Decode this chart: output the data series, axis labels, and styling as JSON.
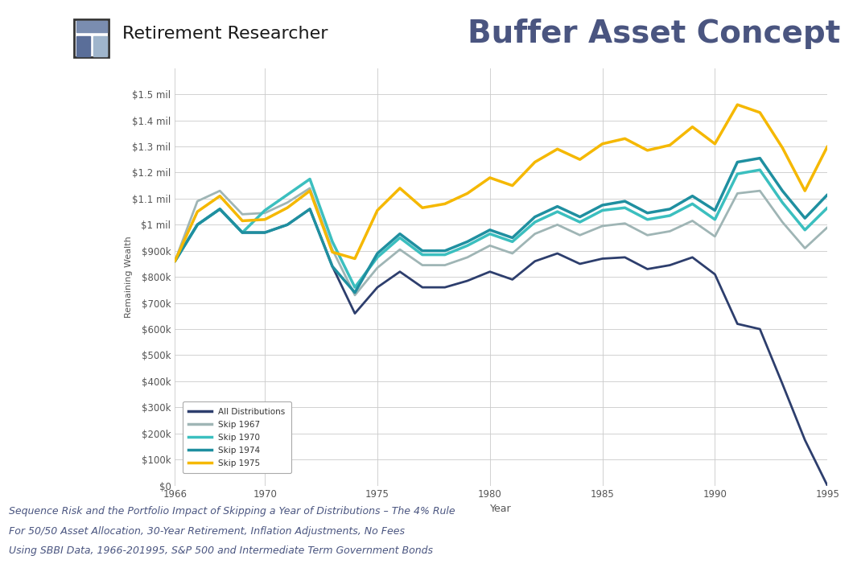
{
  "title": "Buffer Asset Concept",
  "subtitle_line1": "Sequence Risk and the Portfolio Impact of Skipping a Year of Distributions – The 4% Rule",
  "subtitle_line2": "For 50/50 Asset Allocation, 30-Year Retirement, Inflation Adjustments, No Fees",
  "subtitle_line3": "Using SBBI Data, 1966-201995, S&P 500 and Intermediate Term Government Bonds",
  "xlabel": "Year",
  "ylabel": "Remaining Wealth",
  "header_org": "Retirement Researcher",
  "years": [
    1966,
    1967,
    1968,
    1969,
    1970,
    1971,
    1972,
    1973,
    1974,
    1975,
    1976,
    1977,
    1978,
    1979,
    1980,
    1981,
    1982,
    1983,
    1984,
    1985,
    1986,
    1987,
    1988,
    1989,
    1990,
    1991,
    1992,
    1993,
    1994,
    1995
  ],
  "all_dist": [
    860000,
    1000000,
    1060000,
    970000,
    970000,
    1000000,
    1060000,
    840000,
    660000,
    760000,
    820000,
    760000,
    760000,
    785000,
    820000,
    790000,
    860000,
    890000,
    850000,
    870000,
    875000,
    830000,
    845000,
    875000,
    810000,
    620000,
    600000,
    390000,
    175000,
    0
  ],
  "skip_1967": [
    860000,
    1090000,
    1130000,
    1040000,
    1045000,
    1085000,
    1140000,
    905000,
    730000,
    835000,
    905000,
    845000,
    845000,
    875000,
    920000,
    890000,
    965000,
    1000000,
    960000,
    995000,
    1005000,
    960000,
    975000,
    1015000,
    955000,
    1120000,
    1130000,
    1010000,
    910000,
    990000
  ],
  "skip_1970": [
    860000,
    1000000,
    1060000,
    970000,
    1055000,
    1115000,
    1175000,
    935000,
    760000,
    875000,
    950000,
    885000,
    885000,
    920000,
    965000,
    935000,
    1010000,
    1050000,
    1010000,
    1055000,
    1065000,
    1020000,
    1035000,
    1080000,
    1020000,
    1195000,
    1210000,
    1085000,
    980000,
    1065000
  ],
  "skip_1974": [
    860000,
    1000000,
    1060000,
    970000,
    970000,
    1000000,
    1060000,
    840000,
    740000,
    890000,
    965000,
    900000,
    900000,
    935000,
    980000,
    950000,
    1030000,
    1070000,
    1030000,
    1075000,
    1090000,
    1045000,
    1060000,
    1110000,
    1055000,
    1240000,
    1255000,
    1130000,
    1025000,
    1115000
  ],
  "skip_1975": [
    860000,
    1050000,
    1110000,
    1015000,
    1020000,
    1065000,
    1130000,
    895000,
    870000,
    1055000,
    1140000,
    1065000,
    1080000,
    1120000,
    1180000,
    1150000,
    1240000,
    1290000,
    1250000,
    1310000,
    1330000,
    1285000,
    1305000,
    1375000,
    1310000,
    1460000,
    1430000,
    1295000,
    1130000,
    1300000
  ],
  "colors": {
    "all_dist": "#2d3e6d",
    "skip_1967": "#9fb5b5",
    "skip_1970": "#3bbfbf",
    "skip_1974": "#1f8fa0",
    "skip_1975": "#f5b800"
  },
  "linewidths": {
    "all_dist": 2.0,
    "skip_1967": 2.0,
    "skip_1970": 2.5,
    "skip_1974": 2.5,
    "skip_1975": 2.5
  },
  "ylim": [
    0,
    1600000
  ],
  "yticks": [
    0,
    100000,
    200000,
    300000,
    400000,
    500000,
    600000,
    700000,
    800000,
    900000,
    1000000,
    1100000,
    1200000,
    1300000,
    1400000,
    1500000
  ],
  "ytick_labels": [
    "$0",
    "$100k",
    "$200k",
    "$300k",
    "$400k",
    "$500k",
    "$600k",
    "$700k",
    "$800k",
    "$900k",
    "$1 mil",
    "$1.1 mil",
    "$1.2 mil",
    "$1.3 mil",
    "$1.4 mil",
    "$1.5 mil"
  ],
  "xticks": [
    1966,
    1970,
    1975,
    1980,
    1985,
    1990,
    1995
  ],
  "legend_labels": [
    "All Distributions",
    "Skip 1967",
    "Skip 1970",
    "Skip 1974",
    "Skip 1975"
  ],
  "background_color": "#ffffff",
  "grid_color": "#cccccc",
  "title_color": "#4a5580",
  "org_color": "#1a1a1a",
  "subtitle_color": "#4a5580"
}
